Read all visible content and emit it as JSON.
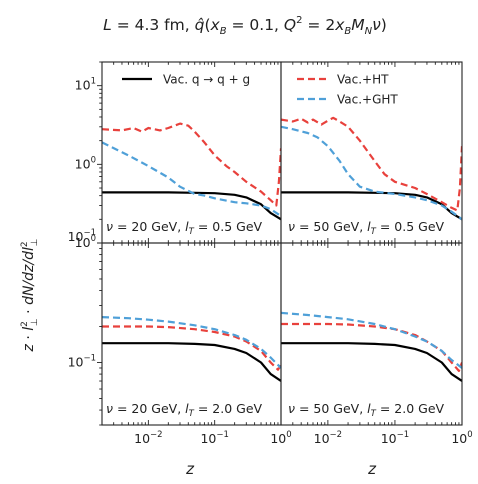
{
  "title": "L = 4.3 fm, q̂(x_B = 0.1, Q² = 2x_B M_N ν)",
  "title_parts": {
    "L": "L",
    "L_rest": " = 4.3 fm, ",
    "qhat": "q̂",
    "open": "(",
    "xB": "x",
    "xB_sub": "B",
    "eq1": " = 0.1, ",
    "Q": "Q",
    "Q_sup": "2",
    "eq2": " = 2",
    "x2": "x",
    "x2_sub": "B",
    "M": "M",
    "M_sub": "N",
    "nu": "ν",
    "close": ")"
  },
  "ylabel": "z · l⊥² · dN/dz/dl⊥²",
  "ylabel_parts": {
    "z": "z",
    "dot1": " · ",
    "l": "l",
    "l_sup": "2",
    "l_sub": "⊥",
    "dot2": " · ",
    "dN": "dN/dz/dl",
    "dl_sup": "2",
    "dl_sub": "⊥"
  },
  "xlabel": "z",
  "legend": [
    {
      "label": "Vac. q → q + g",
      "color": "#000000",
      "style": "solid"
    },
    {
      "label": "Vac.+HT",
      "color": "#e8413c",
      "style": "dashed"
    },
    {
      "label": "Vac.+GHT",
      "color": "#4fa0d8",
      "style": "dashed"
    }
  ],
  "chart_data": [
    {
      "type": "line",
      "annotation": "ν = 20 GeV, l_T = 0.5 GeV",
      "annotation_parts": {
        "nu": "ν",
        "a": " = 20 GeV, ",
        "l": "l",
        "sub": "T",
        "b": " = 0.5 GeV"
      },
      "xscale": "log",
      "yscale": "log",
      "xlim": [
        0.002,
        1
      ],
      "ylim": [
        0.1,
        20
      ],
      "series": [
        {
          "name": "Vac. q → q + g",
          "color": "#000000",
          "dash": false,
          "x": [
            0.002,
            0.005,
            0.01,
            0.02,
            0.05,
            0.1,
            0.2,
            0.3,
            0.5,
            0.7,
            1.0
          ],
          "y": [
            0.44,
            0.44,
            0.44,
            0.44,
            0.435,
            0.43,
            0.41,
            0.38,
            0.31,
            0.24,
            0.2
          ]
        },
        {
          "name": "Vac.+HT",
          "color": "#e8413c",
          "dash": true,
          "x": [
            0.002,
            0.004,
            0.006,
            0.008,
            0.01,
            0.015,
            0.02,
            0.03,
            0.04,
            0.05,
            0.07,
            0.1,
            0.15,
            0.2,
            0.3,
            0.5,
            0.7,
            0.85,
            0.93,
            1.0
          ],
          "y": [
            2.8,
            2.7,
            2.9,
            2.6,
            2.9,
            2.7,
            2.9,
            3.3,
            3.1,
            2.6,
            1.9,
            1.3,
            0.95,
            0.8,
            0.6,
            0.45,
            0.35,
            0.3,
            0.6,
            1.6
          ]
        },
        {
          "name": "Vac.+GHT",
          "color": "#4fa0d8",
          "dash": true,
          "x": [
            0.002,
            0.005,
            0.01,
            0.02,
            0.03,
            0.05,
            0.07,
            0.1,
            0.2,
            0.3,
            0.5,
            0.7,
            1.0
          ],
          "y": [
            1.9,
            1.3,
            0.95,
            0.68,
            0.52,
            0.42,
            0.4,
            0.37,
            0.33,
            0.32,
            0.3,
            0.27,
            0.22
          ]
        }
      ]
    },
    {
      "type": "line",
      "annotation": "ν = 50 GeV, l_T = 0.5 GeV",
      "annotation_parts": {
        "nu": "ν",
        "a": " = 50 GeV, ",
        "l": "l",
        "sub": "T",
        "b": " = 0.5 GeV"
      },
      "xscale": "log",
      "yscale": "log",
      "xlim": [
        0.002,
        1
      ],
      "ylim": [
        0.1,
        20
      ],
      "series": [
        {
          "name": "Vac. q → q + g",
          "color": "#000000",
          "dash": false,
          "x": [
            0.002,
            0.005,
            0.01,
            0.02,
            0.05,
            0.1,
            0.2,
            0.3,
            0.5,
            0.7,
            1.0
          ],
          "y": [
            0.44,
            0.44,
            0.44,
            0.44,
            0.435,
            0.43,
            0.41,
            0.38,
            0.31,
            0.24,
            0.2
          ]
        },
        {
          "name": "Vac.+HT",
          "color": "#e8413c",
          "dash": true,
          "x": [
            0.002,
            0.003,
            0.004,
            0.005,
            0.006,
            0.008,
            0.01,
            0.012,
            0.015,
            0.02,
            0.03,
            0.05,
            0.07,
            0.1,
            0.2,
            0.3,
            0.5,
            0.7,
            0.85,
            0.93,
            1.0
          ],
          "y": [
            3.7,
            3.5,
            3.8,
            3.4,
            3.7,
            3.2,
            3.6,
            3.9,
            3.5,
            3.0,
            2.0,
            1.1,
            0.75,
            0.6,
            0.5,
            0.42,
            0.33,
            0.28,
            0.26,
            0.5,
            1.7
          ]
        },
        {
          "name": "Vac.+GHT",
          "color": "#4fa0d8",
          "dash": true,
          "x": [
            0.002,
            0.003,
            0.005,
            0.007,
            0.01,
            0.015,
            0.02,
            0.03,
            0.05,
            0.1,
            0.2,
            0.3,
            0.5,
            0.7,
            1.0
          ],
          "y": [
            3.0,
            2.8,
            2.5,
            2.2,
            1.7,
            1.1,
            0.75,
            0.52,
            0.45,
            0.42,
            0.38,
            0.35,
            0.3,
            0.25,
            0.2
          ]
        }
      ]
    },
    {
      "type": "line",
      "annotation": "ν = 20 GeV, l_T = 2.0 GeV",
      "annotation_parts": {
        "nu": "ν",
        "a": " = 20 GeV, ",
        "l": "l",
        "sub": "T",
        "b": " = 2.0 GeV"
      },
      "xscale": "log",
      "yscale": "log",
      "xlim": [
        0.002,
        1
      ],
      "ylim": [
        0.03,
        1
      ],
      "series": [
        {
          "name": "Vac. q → q + g",
          "color": "#000000",
          "dash": false,
          "x": [
            0.002,
            0.005,
            0.01,
            0.02,
            0.05,
            0.1,
            0.2,
            0.3,
            0.5,
            0.7,
            1.0
          ],
          "y": [
            0.145,
            0.145,
            0.145,
            0.145,
            0.143,
            0.14,
            0.13,
            0.12,
            0.1,
            0.08,
            0.07
          ]
        },
        {
          "name": "Vac.+HT",
          "color": "#e8413c",
          "dash": true,
          "x": [
            0.002,
            0.005,
            0.01,
            0.02,
            0.05,
            0.1,
            0.2,
            0.3,
            0.5,
            0.7,
            0.9,
            1.0
          ],
          "y": [
            0.2,
            0.2,
            0.2,
            0.198,
            0.19,
            0.18,
            0.165,
            0.15,
            0.125,
            0.1,
            0.087,
            0.095
          ]
        },
        {
          "name": "Vac.+GHT",
          "color": "#4fa0d8",
          "dash": true,
          "x": [
            0.002,
            0.005,
            0.01,
            0.02,
            0.05,
            0.1,
            0.2,
            0.3,
            0.5,
            0.7,
            1.0
          ],
          "y": [
            0.24,
            0.235,
            0.228,
            0.22,
            0.205,
            0.19,
            0.17,
            0.155,
            0.13,
            0.11,
            0.09
          ]
        }
      ]
    },
    {
      "type": "line",
      "annotation": "ν = 50 GeV, l_T = 2.0 GeV",
      "annotation_parts": {
        "nu": "ν",
        "a": " = 50 GeV, ",
        "l": "l",
        "sub": "T",
        "b": " = 2.0 GeV"
      },
      "xscale": "log",
      "yscale": "log",
      "xlim": [
        0.002,
        1
      ],
      "ylim": [
        0.03,
        1
      ],
      "series": [
        {
          "name": "Vac. q → q + g",
          "color": "#000000",
          "dash": false,
          "x": [
            0.002,
            0.005,
            0.01,
            0.02,
            0.05,
            0.1,
            0.2,
            0.3,
            0.5,
            0.7,
            1.0
          ],
          "y": [
            0.145,
            0.145,
            0.145,
            0.145,
            0.143,
            0.14,
            0.13,
            0.12,
            0.1,
            0.08,
            0.07
          ]
        },
        {
          "name": "Vac.+HT",
          "color": "#e8413c",
          "dash": true,
          "x": [
            0.002,
            0.005,
            0.01,
            0.02,
            0.05,
            0.1,
            0.2,
            0.3,
            0.5,
            0.7,
            0.9,
            1.0
          ],
          "y": [
            0.21,
            0.21,
            0.21,
            0.208,
            0.2,
            0.19,
            0.17,
            0.15,
            0.125,
            0.1,
            0.085,
            0.1
          ]
        },
        {
          "name": "Vac.+GHT",
          "color": "#4fa0d8",
          "dash": true,
          "x": [
            0.002,
            0.005,
            0.01,
            0.02,
            0.05,
            0.1,
            0.2,
            0.3,
            0.5,
            0.7,
            1.0
          ],
          "y": [
            0.26,
            0.25,
            0.24,
            0.23,
            0.21,
            0.19,
            0.165,
            0.15,
            0.125,
            0.105,
            0.09
          ]
        }
      ]
    }
  ],
  "ticks": {
    "x": [
      {
        "value": 0.01,
        "label": "10",
        "exp": "−2"
      },
      {
        "value": 0.1,
        "label": "10",
        "exp": "−1"
      },
      {
        "value": 1,
        "label": "10",
        "exp": "0"
      }
    ],
    "y_top": [
      {
        "value": 10,
        "label": "10",
        "exp": "1"
      },
      {
        "value": 1,
        "label": "10",
        "exp": "0"
      },
      {
        "value": 0.1,
        "label": "10",
        "exp": "−1"
      }
    ],
    "y_bottom": [
      {
        "value": 1,
        "label": "10",
        "exp": "0"
      },
      {
        "value": 0.1,
        "label": "10",
        "exp": "−1"
      }
    ]
  }
}
